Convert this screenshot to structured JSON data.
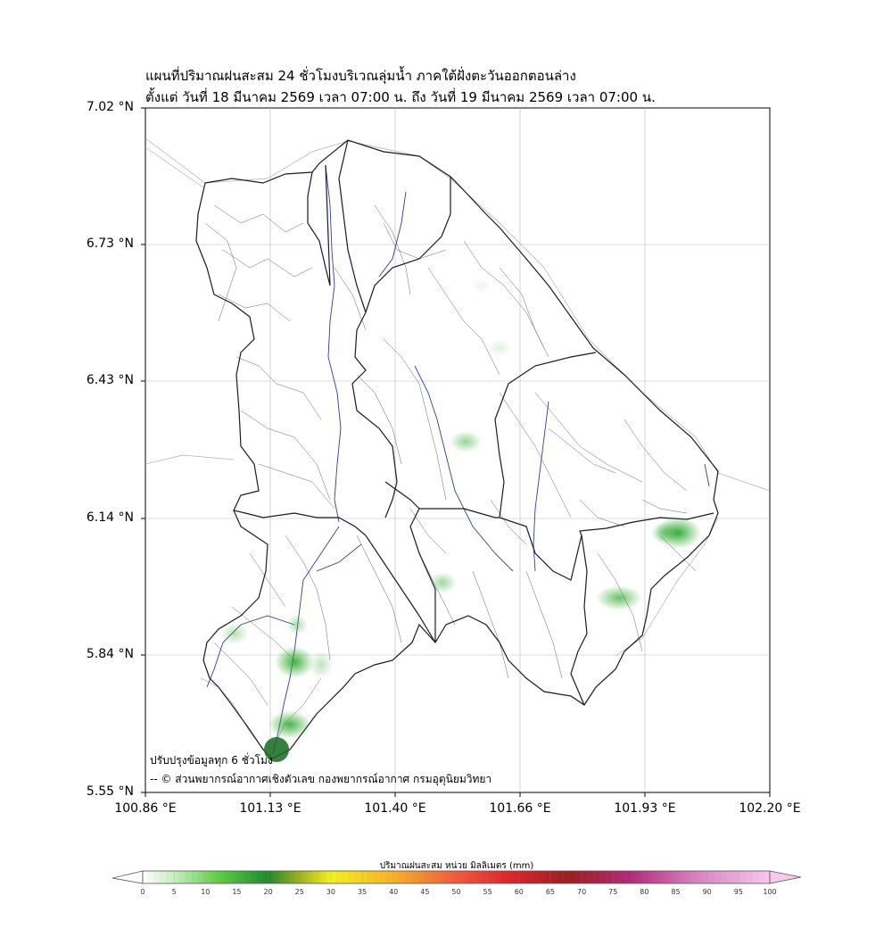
{
  "title_line1": "แผนที่ปริมาณฝนสะสม 24 ชั่วโมงบริเวณลุ่มน้ำ ภาคใต้ฝั่งตะวันออกตอนล่าง",
  "title_line2": "ตั้งแต่ วันที่ 18 มีนาคม 2569 เวลา 07:00 น. ถึง วันที่ 19 มีนาคม 2569 เวลา 07:00 น.",
  "axes": {
    "y_ticks": [
      "7.02 °N",
      "6.73 °N",
      "6.43 °N",
      "6.14 °N",
      "5.84 °N",
      "5.55 °N"
    ],
    "x_ticks": [
      "100.86 °E",
      "101.13 °E",
      "101.40 °E",
      "101.66 °E",
      "101.93 °E",
      "102.20 °E"
    ],
    "lat_range": [
      5.55,
      7.02
    ],
    "lon_range": [
      100.86,
      102.2
    ],
    "grid": true
  },
  "notes": {
    "update": "ปรับปรุงข้อมูลทุก 6 ชั่วโมง",
    "credit": "-- © ส่วนพยากรณ์อากาศเชิงตัวเลข กองพยากรณ์อากาศ กรมอุตุนิยมวิทยา"
  },
  "colorbar": {
    "title": "ปริมาณฝนสะสม หน่วย มิลลิเมตร (mm)",
    "ticks": [
      "0",
      "5",
      "10",
      "15",
      "20",
      "25",
      "30",
      "35",
      "40",
      "45",
      "50",
      "55",
      "60",
      "65",
      "70",
      "75",
      "80",
      "85",
      "90",
      "95",
      "100"
    ],
    "min": 0,
    "max": 100
  },
  "rain_spots_mm": [
    {
      "lon": 102.02,
      "lat": 6.11,
      "mm": 12
    },
    {
      "lon": 101.97,
      "lat": 6.11,
      "mm": 4
    },
    {
      "lon": 101.88,
      "lat": 5.97,
      "mm": 6
    },
    {
      "lon": 101.19,
      "lat": 5.83,
      "mm": 11
    },
    {
      "lon": 101.16,
      "lat": 5.68,
      "mm": 9
    },
    {
      "lon": 101.1,
      "lat": 5.61,
      "mm": 20
    },
    {
      "lon": 101.24,
      "lat": 5.82,
      "mm": 2
    },
    {
      "lon": 101.19,
      "lat": 5.9,
      "mm": 2
    },
    {
      "lon": 101.56,
      "lat": 6.29,
      "mm": 3
    },
    {
      "lon": 101.49,
      "lat": 6.01,
      "mm": 3
    },
    {
      "lon": 101.03,
      "lat": 5.88,
      "mm": 2
    },
    {
      "lon": 101.62,
      "lat": 6.5,
      "mm": 1
    }
  ]
}
